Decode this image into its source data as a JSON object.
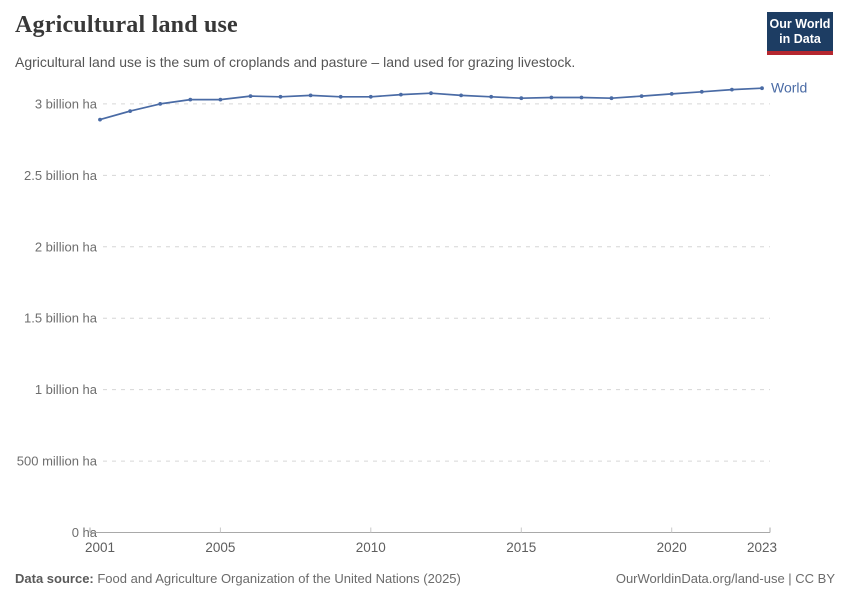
{
  "header": {
    "title": "Agricultural land use",
    "subtitle": "Agricultural land use is the sum of croplands and pasture – land used for grazing livestock.",
    "logo_line1": "Our World",
    "logo_line2": "in Data"
  },
  "chart_data": {
    "type": "line",
    "title": "Agricultural land use",
    "unit": "hectares (ha)",
    "x": [
      2001,
      2002,
      2003,
      2004,
      2005,
      2006,
      2007,
      2008,
      2009,
      2010,
      2011,
      2012,
      2013,
      2014,
      2015,
      2016,
      2017,
      2018,
      2019,
      2020,
      2021,
      2022,
      2023
    ],
    "series": [
      {
        "name": "World",
        "color": "#4a6ba5",
        "values_billion_ha": [
          2.89,
          2.95,
          3.0,
          3.03,
          3.03,
          3.055,
          3.05,
          3.06,
          3.05,
          3.05,
          3.065,
          3.075,
          3.06,
          3.05,
          3.04,
          3.045,
          3.045,
          3.04,
          3.055,
          3.07,
          3.085,
          3.1,
          3.11
        ]
      }
    ],
    "xlim": [
      2001,
      2023
    ],
    "ylim_billion_ha": [
      0,
      3.2
    ],
    "y_ticks": [
      {
        "value": 0,
        "label": "0 ha"
      },
      {
        "value": 0.5,
        "label": "500 million ha"
      },
      {
        "value": 1,
        "label": "1 billion ha"
      },
      {
        "value": 1.5,
        "label": "1.5 billion ha"
      },
      {
        "value": 2,
        "label": "2 billion ha"
      },
      {
        "value": 2.5,
        "label": "2.5 billion ha"
      },
      {
        "value": 3,
        "label": "3 billion ha"
      }
    ],
    "x_tick_labels": [
      2001,
      2005,
      2010,
      2015,
      2020,
      2023
    ],
    "grid": "horizontal-dashed",
    "legend_position": "end-of-line-label"
  },
  "footer": {
    "source_label": "Data source:",
    "source_text": " Food and Agriculture Organization of the United Nations (2025)",
    "right_text": "OurWorldinData.org/land-use | CC BY"
  },
  "colors": {
    "line": "#4a6ba5",
    "logo_bg": "#1d3d63",
    "logo_stripe": "#b5272f",
    "grid": "#d6d6d6",
    "axis": "#a9a9a9",
    "axis_tick": "#c9c9c9",
    "y_tick_label": "#6e6e6e",
    "x_tick_label": "#5e5e5e"
  }
}
